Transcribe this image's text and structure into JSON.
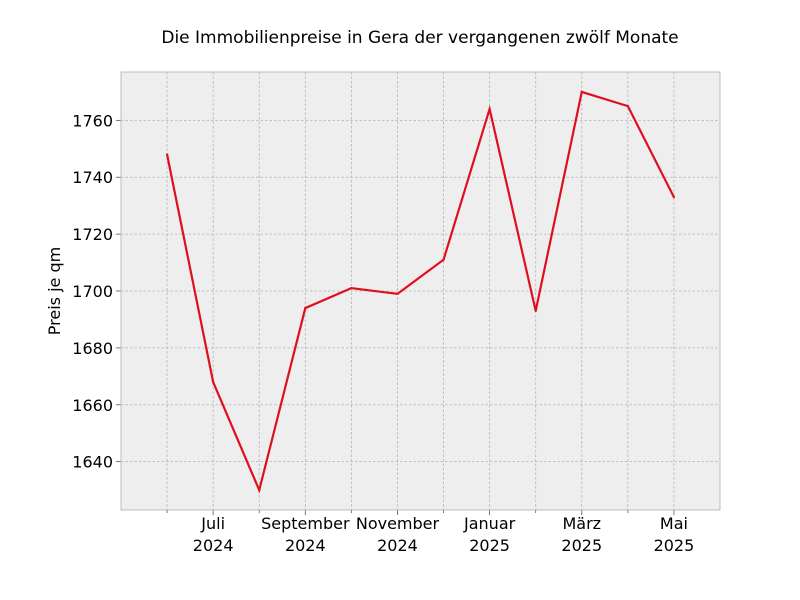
{
  "chart_data": {
    "type": "line",
    "title": "Die Immobilienpreise in Gera der vergangenen zwölf Monate",
    "xlabel": "",
    "ylabel": "Preis je qm",
    "x": [
      "2024-06",
      "2024-07",
      "2024-08",
      "2024-09",
      "2024-10",
      "2024-11",
      "2024-12",
      "2025-01",
      "2025-02",
      "2025-03",
      "2025-04",
      "2025-05"
    ],
    "series": [
      {
        "values": [
          1748,
          1668,
          1630,
          1694,
          1701,
          1699,
          1711,
          1764,
          1693,
          1770,
          1765,
          1733
        ],
        "color": "#e00f1e"
      }
    ],
    "x_tick_labels": [
      {
        "x": "2024-07",
        "line1": "Juli",
        "line2": "2024"
      },
      {
        "x": "2024-09",
        "line1": "September",
        "line2": "2024"
      },
      {
        "x": "2024-11",
        "line1": "November",
        "line2": "2024"
      },
      {
        "x": "2025-01",
        "line1": "Januar",
        "line2": "2025"
      },
      {
        "x": "2025-03",
        "line1": "März",
        "line2": "2025"
      },
      {
        "x": "2025-05",
        "line1": "Mai",
        "line2": "2025"
      }
    ],
    "yticks": [
      1640,
      1660,
      1680,
      1700,
      1720,
      1740,
      1760
    ],
    "ylim": [
      1623,
      1777
    ],
    "xlim": [
      "2024-05",
      "2025-06"
    ],
    "grid": true,
    "colors": {
      "plot_background": "#eeeeee",
      "grid": "#b3b3b3",
      "frame": "#bcbcbc"
    }
  }
}
